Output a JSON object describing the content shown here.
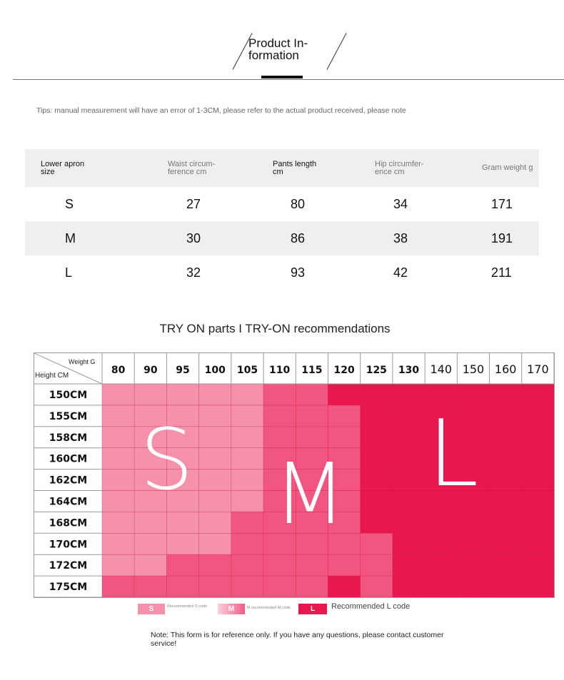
{
  "header": {
    "title_line1": "Product In-",
    "title_line2": "formation"
  },
  "tips": "Tips: manual measurement will have an error of 1-3CM, please refer to the actual product received, please note",
  "size_table": {
    "headers": [
      {
        "line1": "Lower apron",
        "line2": "size"
      },
      {
        "line1": "Waist circum-",
        "line2": "ference cm"
      },
      {
        "line1": "Pants length",
        "line2": "cm"
      },
      {
        "line1": "Hip circumfer-",
        "line2": "ence cm"
      },
      {
        "line1": "Gram weight g",
        "line2": ""
      }
    ],
    "rows": [
      [
        "S",
        "27",
        "80",
        "34",
        "171"
      ],
      [
        "M",
        "30",
        "86",
        "38",
        "191"
      ],
      [
        "L",
        "32",
        "93",
        "42",
        "211"
      ]
    ]
  },
  "tryon": {
    "title": "TRY ON parts I TRY-ON recommendations",
    "corner_weight": "Weight G",
    "corner_height": "Height CM",
    "weights": [
      "80",
      "90",
      "95",
      "100",
      "105",
      "110",
      "115",
      "120",
      "125",
      "130",
      "140",
      "150",
      "160",
      "170"
    ],
    "heights": [
      "150CM",
      "155CM",
      "158CM",
      "160CM",
      "162CM",
      "164CM",
      "168CM",
      "170CM",
      "172CM",
      "175CM"
    ],
    "size_matrix": [
      [
        "S",
        "S",
        "S",
        "S",
        "S",
        "M",
        "M",
        "L",
        "L",
        "L",
        "L",
        "L",
        "L",
        "L"
      ],
      [
        "S",
        "S",
        "S",
        "S",
        "S",
        "M",
        "M",
        "M",
        "L",
        "L",
        "L",
        "L",
        "L",
        "L"
      ],
      [
        "S",
        "S",
        "S",
        "S",
        "S",
        "M",
        "M",
        "M",
        "L",
        "L",
        "L",
        "L",
        "L",
        "L"
      ],
      [
        "S",
        "S",
        "S",
        "S",
        "S",
        "M",
        "M",
        "M",
        "L",
        "L",
        "L",
        "L",
        "L",
        "L"
      ],
      [
        "S",
        "S",
        "S",
        "S",
        "S",
        "M",
        "M",
        "M",
        "L",
        "L",
        "L",
        "L",
        "L",
        "L"
      ],
      [
        "S",
        "S",
        "S",
        "S",
        "S",
        "M",
        "M",
        "M",
        "L",
        "L",
        "L",
        "L",
        "L",
        "L"
      ],
      [
        "S",
        "S",
        "S",
        "S",
        "M",
        "M",
        "M",
        "M",
        "L",
        "L",
        "L",
        "L",
        "L",
        "L"
      ],
      [
        "S",
        "S",
        "S",
        "S",
        "M",
        "M",
        "M",
        "M",
        "M",
        "L",
        "L",
        "L",
        "L",
        "L"
      ],
      [
        "S",
        "S",
        "M",
        "M",
        "M",
        "M",
        "M",
        "M",
        "M",
        "L",
        "L",
        "L",
        "L",
        "L"
      ],
      [
        "M",
        "M",
        "M",
        "M",
        "M",
        "M",
        "M",
        "L",
        "M",
        "L",
        "L",
        "L",
        "L",
        "L"
      ]
    ],
    "big_letters": {
      "s": "S",
      "m": "M",
      "l": "L"
    },
    "colors": {
      "S": "#f591aa",
      "M": "#f2557f",
      "L": "#e8174d"
    }
  },
  "legend": {
    "s_label": "S",
    "s_text": "Recommended S code",
    "m_label": "M",
    "m_text": "M recommended M code",
    "l_label": "L",
    "l_text": "Recommended L code"
  },
  "note": "Note: This form is for reference only. If you have any questions, please contact customer service!"
}
